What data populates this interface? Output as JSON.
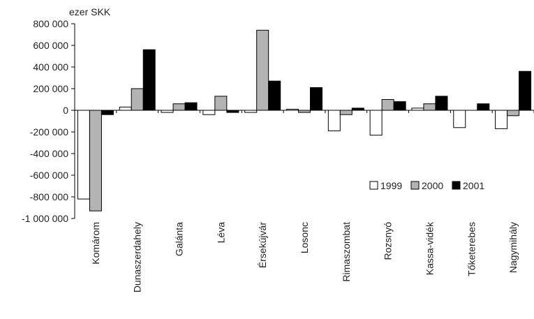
{
  "chart_data": {
    "type": "bar",
    "ylabel": "ezer SKK",
    "ylim": [
      -1000000,
      800000
    ],
    "ytick_step": 200000,
    "ytick_labels": [
      "800 000",
      "600 000",
      "400 000",
      "200 000",
      "0",
      "-200 000",
      "-400 000",
      "-600 000",
      "-800 000",
      "-1 000 000"
    ],
    "grid": false,
    "legend_position": "right",
    "categories": [
      "Komárom",
      "Dunaszerdahely",
      "Galánta",
      "Léva",
      "Érsekújvár",
      "Losonc",
      "Rimaszombat",
      "Rozsnyó",
      "Kassa-vidék",
      "Tőketerebes",
      "Nagymihály"
    ],
    "series": [
      {
        "name": "1999",
        "color": "#ffffff",
        "values": [
          -820000,
          30000,
          -20000,
          -40000,
          -20000,
          10000,
          -190000,
          -230000,
          20000,
          -160000,
          -170000
        ]
      },
      {
        "name": "2000",
        "color": "#b3b3b3",
        "values": [
          -930000,
          200000,
          60000,
          130000,
          740000,
          -20000,
          -40000,
          100000,
          60000,
          0,
          -50000
        ]
      },
      {
        "name": "2001",
        "color": "#000000",
        "values": [
          -40000,
          560000,
          70000,
          -20000,
          270000,
          210000,
          20000,
          80000,
          130000,
          60000,
          360000
        ]
      }
    ]
  }
}
